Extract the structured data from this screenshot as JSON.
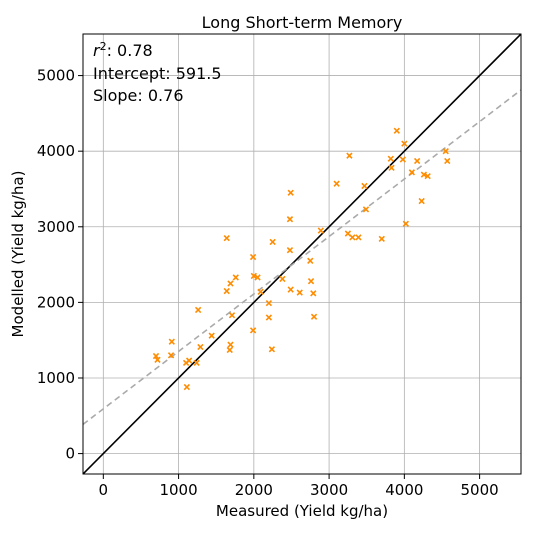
{
  "chart_data": {
    "type": "scatter",
    "title": "Long Short-term Memory",
    "xlabel": "Measured (Yield kg/ha)",
    "ylabel": "Modelled (Yield kg/ha)",
    "xlim": [
      -270,
      5550
    ],
    "ylim": [
      -270,
      5550
    ],
    "xticks": [
      0,
      1000,
      2000,
      3000,
      4000,
      5000
    ],
    "yticks": [
      0,
      1000,
      2000,
      3000,
      4000,
      5000
    ],
    "xtick_labels": [
      "0",
      "1000",
      "2000",
      "3000",
      "4000",
      "5000"
    ],
    "ytick_labels": [
      "0",
      "1000",
      "2000",
      "3000",
      "4000",
      "5000"
    ],
    "grid": true,
    "stats": {
      "r2_prefix": "r",
      "r2_sup": "2",
      "r2_value": ": 0.78",
      "intercept_text": "Intercept: 591.5",
      "slope_text": "Slope: 0.76"
    },
    "regression": {
      "intercept": 591.5,
      "slope": 0.76,
      "color": "#aaaaaa",
      "style": "dashed"
    },
    "identity_line": {
      "color": "#000000"
    },
    "marker_color": "#ff8c00",
    "series": [
      {
        "marker": "x",
        "points": [
          [
            700,
            1290
          ],
          [
            720,
            1240
          ],
          [
            900,
            1300
          ],
          [
            910,
            1480
          ],
          [
            1100,
            1200
          ],
          [
            1110,
            880
          ],
          [
            1140,
            1230
          ],
          [
            1240,
            1200
          ],
          [
            1260,
            1900
          ],
          [
            1290,
            1410
          ],
          [
            1440,
            1560
          ],
          [
            1640,
            2850
          ],
          [
            1640,
            2150
          ],
          [
            1680,
            1370
          ],
          [
            1690,
            2250
          ],
          [
            1690,
            1440
          ],
          [
            1710,
            1830
          ],
          [
            1760,
            2330
          ],
          [
            1990,
            2600
          ],
          [
            1990,
            1630
          ],
          [
            2000,
            2350
          ],
          [
            2050,
            2330
          ],
          [
            2090,
            2140
          ],
          [
            2200,
            1990
          ],
          [
            2200,
            1800
          ],
          [
            2240,
            1380
          ],
          [
            2250,
            2800
          ],
          [
            2380,
            2310
          ],
          [
            2480,
            3100
          ],
          [
            2480,
            2690
          ],
          [
            2490,
            3450
          ],
          [
            2490,
            2170
          ],
          [
            2610,
            2130
          ],
          [
            2750,
            2550
          ],
          [
            2760,
            2280
          ],
          [
            2790,
            2120
          ],
          [
            2800,
            1810
          ],
          [
            2890,
            2950
          ],
          [
            3100,
            3570
          ],
          [
            3250,
            2910
          ],
          [
            3270,
            3940
          ],
          [
            3310,
            2860
          ],
          [
            3390,
            2860
          ],
          [
            3470,
            3540
          ],
          [
            3490,
            3230
          ],
          [
            3700,
            2840
          ],
          [
            3820,
            3900
          ],
          [
            3830,
            3780
          ],
          [
            3900,
            4270
          ],
          [
            3980,
            3890
          ],
          [
            4000,
            4100
          ],
          [
            4020,
            3040
          ],
          [
            4100,
            3720
          ],
          [
            4170,
            3870
          ],
          [
            4230,
            3340
          ],
          [
            4260,
            3690
          ],
          [
            4310,
            3670
          ],
          [
            4550,
            4000
          ],
          [
            4570,
            3870
          ]
        ]
      }
    ]
  }
}
